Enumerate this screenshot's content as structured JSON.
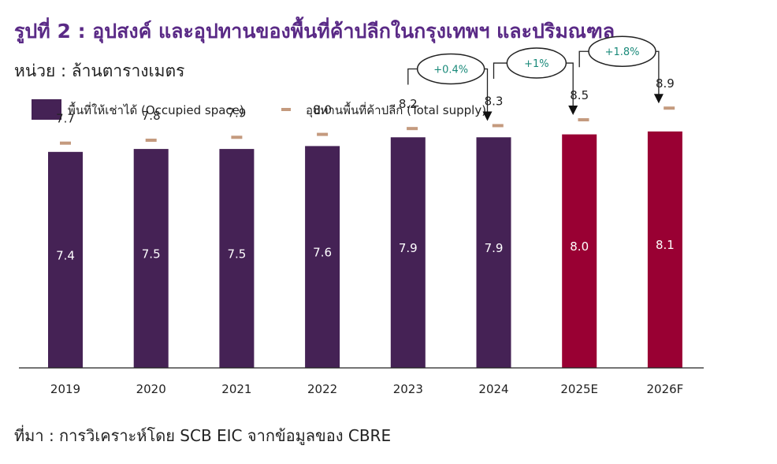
{
  "title": "รูปที่ 2 : อุปสงค์ และอุปทานของพื้นที่ค้าปลีกในกรุงเทพฯ และปริมณฑล",
  "unit": "หน่วย : ล้านตารางเมตร",
  "source": "ที่มา : การวิเคราะห์โดย SCB EIC จากข้อมูลของ CBRE",
  "colors": {
    "occupied_actual": "#452255",
    "occupied_forecast": "#990033",
    "supply_marker": "#c49a7e",
    "growth_text": "#1a8a7a",
    "title": "#5a2a86"
  },
  "chart_data": {
    "type": "bar",
    "title": "",
    "xlabel": "",
    "ylabel": "",
    "ylim": [
      0,
      9.5
    ],
    "categories": [
      "2019",
      "2020",
      "2021",
      "2022",
      "2023",
      "2024",
      "2025E",
      "2026F"
    ],
    "forecast_flags": [
      false,
      false,
      false,
      false,
      false,
      false,
      true,
      true
    ],
    "legend": {
      "position": "top-left",
      "occupied": "พื้นที่ให้เช่าได้ (Occupied space)",
      "supply": "อุปทานพื้นที่ค้าปลีก (Total supply)"
    },
    "series": [
      {
        "name": "พื้นที่ให้เช่าได้ (Occupied space)",
        "kind": "bar",
        "values": [
          7.4,
          7.5,
          7.5,
          7.6,
          7.9,
          7.9,
          8.0,
          8.1
        ]
      },
      {
        "name": "อุปทานพื้นที่ค้าปลีก (Total supply)",
        "kind": "marker",
        "values": [
          7.7,
          7.8,
          7.9,
          8.0,
          8.2,
          8.3,
          8.5,
          8.9
        ]
      }
    ],
    "annotations": [
      {
        "from": "2023",
        "to": "2024",
        "text": "+0.4%"
      },
      {
        "from": "2024",
        "to": "2025E",
        "text": "+1%"
      },
      {
        "from": "2025E",
        "to": "2026F",
        "text": "+1.8%"
      }
    ]
  }
}
